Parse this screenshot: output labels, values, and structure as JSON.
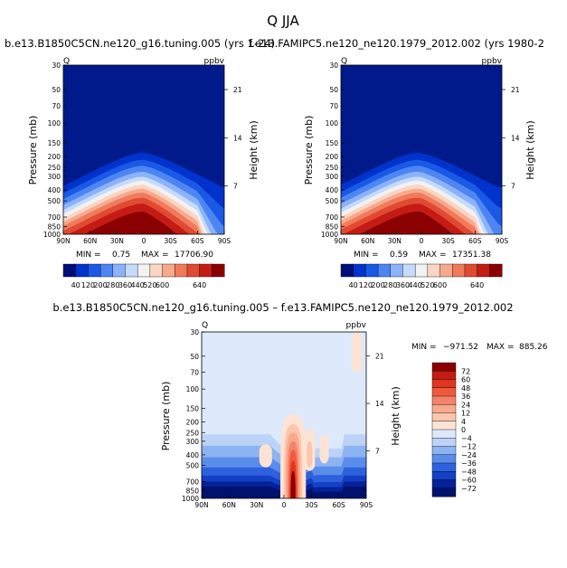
{
  "figure": {
    "title": "Q  JJA"
  },
  "chart_data": [
    {
      "type": "heatmap",
      "title": "b.e13.B1850C5CN.ne120_g16.tuning.005 (yrs 1-24)",
      "variable": "Q",
      "units": "ppbv",
      "ylabel": "Pressure (mb)",
      "ylabel_right": "Height (km)",
      "x_ticks": [
        "90N",
        "60N",
        "30N",
        "0",
        "30S",
        "60S",
        "90S"
      ],
      "y_ticks": [
        30,
        50,
        70,
        100,
        150,
        200,
        250,
        300,
        400,
        500,
        700,
        850,
        1000
      ],
      "y_ticks_right": [
        21,
        14,
        7
      ],
      "min_label": "MIN =",
      "min": "0.75",
      "max_label": "MAX =",
      "max": "17706.90",
      "colorbar_ticks": [
        40,
        120,
        200,
        280,
        360,
        440,
        520,
        600,
        640
      ],
      "colors": [
        "#000e7a",
        "#0033cc",
        "#1a58e6",
        "#4d86f2",
        "#8cb3f7",
        "#c6dbfb",
        "#f2f2f2",
        "#fbd5c3",
        "#f7a98c",
        "#f07a5c",
        "#e04a33",
        "#c41c14",
        "#8b0000"
      ]
    },
    {
      "type": "heatmap",
      "title": "f.e13.FAMIPC5.ne120_ne120.1979_2012.002 (yrs 1980-2",
      "variable": "Q",
      "units": "ppbv",
      "ylabel": "Pressure (mb)",
      "ylabel_right": "Height (km)",
      "x_ticks": [
        "90N",
        "60N",
        "30N",
        "0",
        "30S",
        "60S",
        "90S"
      ],
      "y_ticks": [
        30,
        50,
        70,
        100,
        150,
        200,
        250,
        300,
        400,
        500,
        700,
        850,
        1000
      ],
      "y_ticks_right": [
        21,
        14,
        7
      ],
      "min_label": "MIN =",
      "min": "0.59",
      "max_label": "MAX =",
      "max": "17351.38",
      "colorbar_ticks": [
        40,
        120,
        200,
        280,
        360,
        440,
        520,
        600,
        640
      ],
      "colors": [
        "#000e7a",
        "#0033cc",
        "#1a58e6",
        "#4d86f2",
        "#8cb3f7",
        "#c6dbfb",
        "#f2f2f2",
        "#fbd5c3",
        "#f7a98c",
        "#f07a5c",
        "#e04a33",
        "#c41c14",
        "#8b0000"
      ]
    },
    {
      "type": "heatmap",
      "title": "b.e13.B1850C5CN.ne120_g16.tuning.005 – f.e13.FAMIPC5.ne120_ne120.1979_2012.002",
      "variable": "Q",
      "units": "ppbv",
      "ylabel": "Pressure (mb)",
      "ylabel_right": "Height (km)",
      "x_ticks": [
        "90N",
        "60N",
        "30N",
        "0",
        "30S",
        "60S",
        "90S"
      ],
      "y_ticks": [
        30,
        50,
        70,
        100,
        150,
        200,
        250,
        300,
        400,
        500,
        700,
        850,
        1000
      ],
      "y_ticks_right": [
        21,
        14,
        7
      ],
      "min_label": "MIN =",
      "min": "−971.52",
      "max_label": "MAX =",
      "max": "885.26",
      "colorbar_ticks": [
        "72",
        "60",
        "48",
        "36",
        "24",
        "12",
        "4",
        "0",
        "−4",
        "−12",
        "−24",
        "−36",
        "−48",
        "−60",
        "−72"
      ],
      "colors": [
        "#8b0000",
        "#c41c14",
        "#e0361f",
        "#f05a3c",
        "#f5826a",
        "#f7a98c",
        "#fbc6ad",
        "#fde3d4",
        "#dde9fb",
        "#bcd3f7",
        "#8cb3f2",
        "#5a8ceb",
        "#2e62dd",
        "#1440c4",
        "#05229a",
        "#00116e"
      ]
    }
  ]
}
